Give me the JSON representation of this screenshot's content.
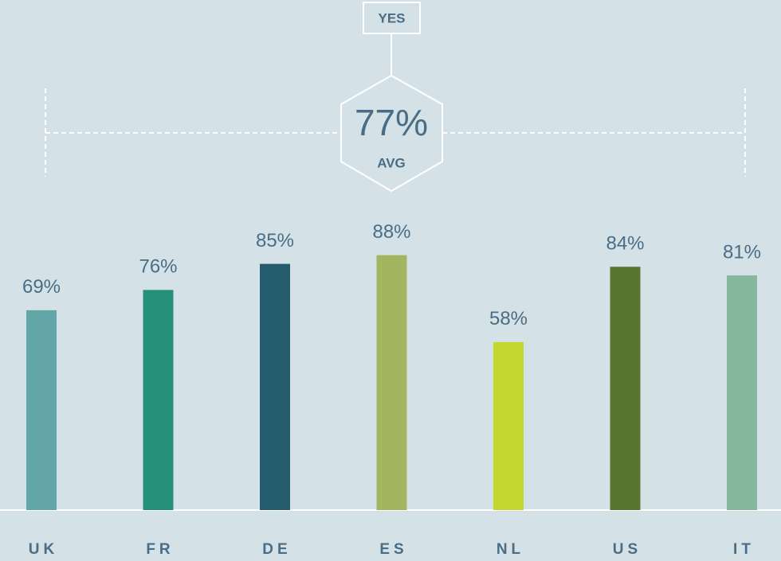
{
  "chart_data": {
    "type": "bar",
    "title": "YES",
    "average": 77,
    "average_label": "77%",
    "average_caption": "AVG",
    "categories": [
      "UK",
      "FR",
      "DE",
      "ES",
      "NL",
      "US",
      "IT"
    ],
    "values": [
      69,
      76,
      85,
      88,
      58,
      84,
      81
    ],
    "value_labels": [
      "69%",
      "76%",
      "85%",
      "88%",
      "58%",
      "84%",
      "81%"
    ],
    "colors": [
      "#62a6a8",
      "#26907a",
      "#245c6e",
      "#a3b55f",
      "#c1d72e",
      "#58762f",
      "#84b79c"
    ],
    "ylim": [
      0,
      100
    ]
  }
}
